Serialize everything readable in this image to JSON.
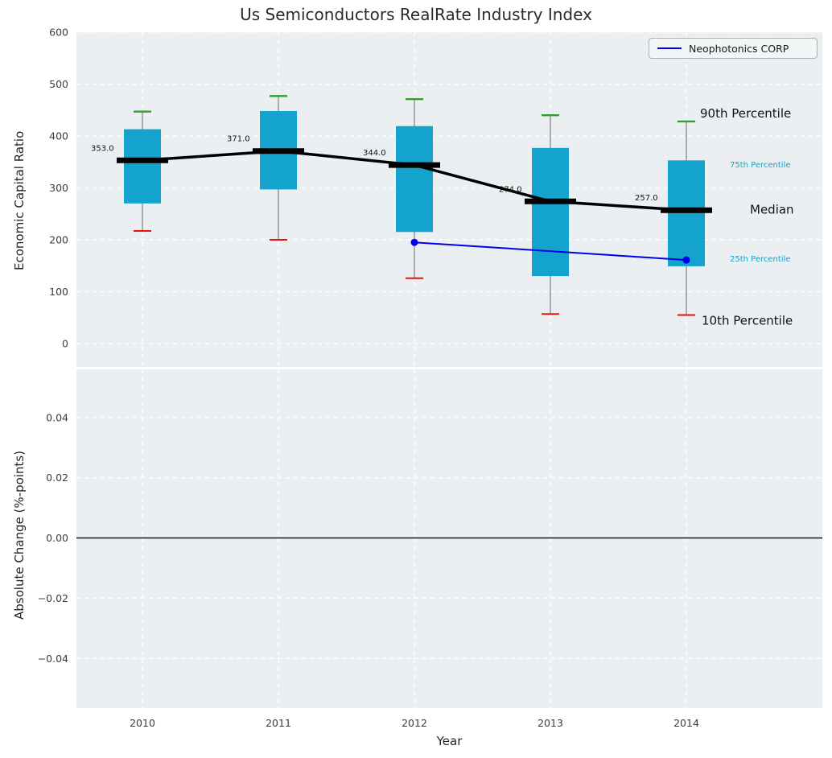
{
  "title": "Us Semiconductors RealRate Industry Index",
  "axes": {
    "top_ylabel": "Economic Capital Ratio",
    "bottom_ylabel": "Absolute Change (%-points)",
    "xlabel": "Year"
  },
  "legend": {
    "label": "Neophotonics CORP"
  },
  "colors": {
    "box": "#14a3cc",
    "median_line": "#000000",
    "series_line": "#0000ee",
    "cap_high": "#2ca02c",
    "cap_low": "#e8120b",
    "whisker": "#7f7f7f",
    "annotation_small": "#14a3cc",
    "annotation_large": "#111111",
    "plot_bg": "#eceff1",
    "grid": "#ffffff",
    "tick_label": "#3c3c3c"
  },
  "chart_data": [
    {
      "type": "boxplot",
      "title": "Us Semiconductors RealRate Industry Index",
      "xlabel": "Year",
      "ylabel": "Economic Capital Ratio",
      "categories": [
        "2010",
        "2011",
        "2012",
        "2013",
        "2014"
      ],
      "ylim": [
        -45,
        600
      ],
      "ytick_values": [
        0,
        100,
        200,
        300,
        400,
        500,
        600
      ],
      "yticks": [
        "0",
        "100",
        "200",
        "300",
        "400",
        "500",
        "600"
      ],
      "grid": true,
      "legend_position": "upper right",
      "series": [
        {
          "name": "90th Percentile",
          "values": [
            447,
            477,
            471,
            440,
            428
          ]
        },
        {
          "name": "75th Percentile",
          "values": [
            413,
            448,
            419,
            377,
            353
          ]
        },
        {
          "name": "Median",
          "values": [
            353,
            371,
            344,
            274,
            257
          ]
        },
        {
          "name": "25th Percentile",
          "values": [
            270,
            297,
            215,
            130,
            149
          ]
        },
        {
          "name": "10th Percentile",
          "values": [
            217,
            200,
            126,
            57,
            55
          ]
        },
        {
          "name": "Neophotonics CORP",
          "x": [
            "2012",
            "2014"
          ],
          "values": [
            195,
            161
          ]
        }
      ],
      "median_labels": [
        "353.0",
        "371.0",
        "344.0",
        "274.0",
        "257.0"
      ],
      "annotations": [
        {
          "text": "90th Percentile",
          "value": 443,
          "dx": 17,
          "size": "large",
          "color": "black"
        },
        {
          "text": "75th Percentile",
          "value": 344,
          "dx": 54,
          "size": "small",
          "color": "cyan"
        },
        {
          "text": "Median",
          "value": 257,
          "dx": 79,
          "size": "large",
          "color": "black"
        },
        {
          "text": "25th Percentile",
          "value": 163,
          "dx": 54,
          "size": "small",
          "color": "cyan"
        },
        {
          "text": "10th Percentile",
          "value": 43,
          "dx": 19,
          "size": "large",
          "color": "black"
        }
      ]
    },
    {
      "type": "line",
      "ylabel": "Absolute Change (%-points)",
      "xlabel": "Year",
      "categories": [
        "2010",
        "2011",
        "2012",
        "2013",
        "2014"
      ],
      "ylim": [
        -0.0565,
        0.056
      ],
      "ytick_values": [
        0.04,
        0.02,
        0.0,
        -0.02,
        -0.04
      ],
      "yticks": [
        "0.04",
        "0.02",
        "0.00",
        "−0.02",
        "−0.04"
      ],
      "grid": true,
      "zero_line": 0.0,
      "values": []
    }
  ]
}
